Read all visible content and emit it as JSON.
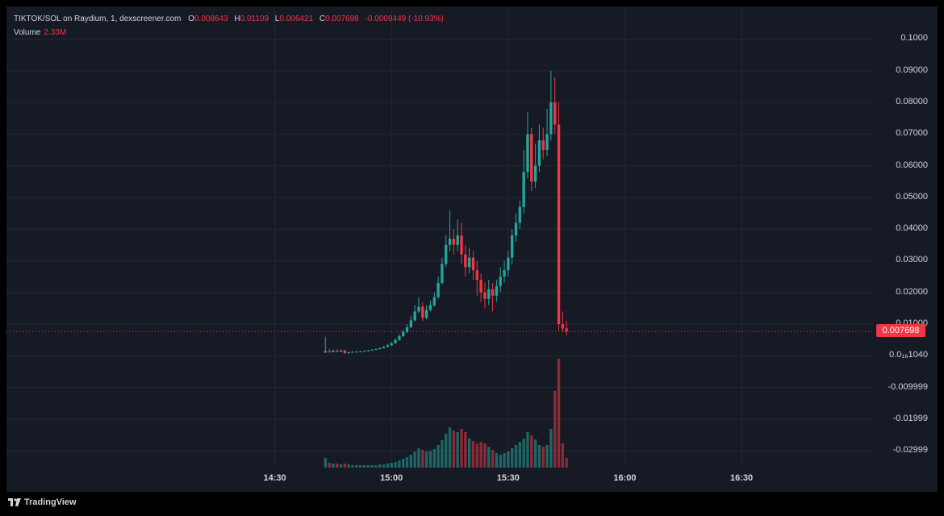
{
  "legend": {
    "symbol": "TIKTOK/SOL on Raydium, 1, dexscreener.com",
    "o_label": "O",
    "o_value": "0.008643",
    "h_label": "H",
    "h_value": "0.01109",
    "l_label": "L",
    "l_value": "0.006421",
    "c_label": "C",
    "c_value": "0.007698",
    "change": "-0.0009449 (-10.93%)",
    "volume_label": "Volume",
    "volume_value": "2.33M"
  },
  "current_price_label": "0.007698",
  "branding": "TradingView",
  "colors": {
    "up": "#26a69a",
    "down": "#f23645",
    "background": "#161a25",
    "grid": "#232733",
    "text": "#d1d4dc"
  },
  "chart_data": {
    "type": "candlestick",
    "y_ticks": [
      "0.1000",
      "0.09000",
      "0.08000",
      "0.07000",
      "0.06000",
      "0.05000",
      "0.04000",
      "0.03000",
      "0.02000",
      "0.01000",
      "0.0₁₆1040",
      "-0.009999",
      "-0.01999",
      "-0.02999"
    ],
    "y_tick_values": [
      0.1,
      0.09,
      0.08,
      0.07,
      0.06,
      0.05,
      0.04,
      0.03,
      0.02,
      0.01,
      0.0,
      -0.01,
      -0.02,
      -0.03
    ],
    "x_ticks": [
      "14:30",
      "15:00",
      "15:30",
      "16:00",
      "16:30"
    ],
    "x_tick_minutes": [
      870,
      900,
      930,
      960,
      990
    ],
    "x_range_minutes": [
      801,
      1024
    ],
    "y_range": [
      -0.0353,
      0.1103
    ],
    "current_price": 0.007698,
    "candles": [
      [
        883,
        0.001,
        0.0015,
        0.006,
        0.0009,
        1.2
      ],
      [
        884,
        0.0015,
        0.0012,
        0.0022,
        0.001,
        0.6
      ],
      [
        885,
        0.0012,
        0.0016,
        0.002,
        0.0011,
        0.5
      ],
      [
        886,
        0.0016,
        0.0013,
        0.0021,
        0.0011,
        0.5
      ],
      [
        887,
        0.0013,
        0.0017,
        0.002,
        0.0012,
        0.4
      ],
      [
        888,
        0.0017,
        0.0008,
        0.0019,
        0.0007,
        0.5
      ],
      [
        889,
        0.0008,
        0.0011,
        0.0014,
        0.0007,
        0.4
      ],
      [
        890,
        0.0011,
        0.0012,
        0.0015,
        0.001,
        0.3
      ],
      [
        891,
        0.0012,
        0.0013,
        0.0015,
        0.0011,
        0.3
      ],
      [
        892,
        0.0013,
        0.0014,
        0.0016,
        0.0012,
        0.3
      ],
      [
        893,
        0.0014,
        0.0015,
        0.0017,
        0.0013,
        0.3
      ],
      [
        894,
        0.0015,
        0.0017,
        0.0019,
        0.0014,
        0.3
      ],
      [
        895,
        0.0017,
        0.0019,
        0.0021,
        0.0016,
        0.3
      ],
      [
        896,
        0.0019,
        0.0021,
        0.0023,
        0.0018,
        0.3
      ],
      [
        897,
        0.0021,
        0.0024,
        0.0027,
        0.002,
        0.4
      ],
      [
        898,
        0.0024,
        0.0028,
        0.0031,
        0.0023,
        0.4
      ],
      [
        899,
        0.0028,
        0.0033,
        0.0037,
        0.0027,
        0.5
      ],
      [
        900,
        0.0033,
        0.004,
        0.0044,
        0.0031,
        0.6
      ],
      [
        901,
        0.004,
        0.005,
        0.0055,
        0.0038,
        0.7
      ],
      [
        902,
        0.005,
        0.0062,
        0.0068,
        0.0048,
        0.9
      ],
      [
        903,
        0.0062,
        0.0075,
        0.0083,
        0.006,
        1.1
      ],
      [
        904,
        0.0075,
        0.009,
        0.01,
        0.0072,
        1.3
      ],
      [
        905,
        0.009,
        0.0112,
        0.0125,
        0.0088,
        1.6
      ],
      [
        906,
        0.0112,
        0.014,
        0.016,
        0.0108,
        2.0
      ],
      [
        907,
        0.014,
        0.0155,
        0.0185,
        0.0135,
        2.4
      ],
      [
        908,
        0.0155,
        0.012,
        0.017,
        0.011,
        2.2
      ],
      [
        909,
        0.012,
        0.0145,
        0.016,
        0.0115,
        2.0
      ],
      [
        910,
        0.0145,
        0.016,
        0.0175,
        0.014,
        2.1
      ],
      [
        911,
        0.016,
        0.0185,
        0.02,
        0.0155,
        2.3
      ],
      [
        912,
        0.0185,
        0.023,
        0.025,
        0.018,
        2.8
      ],
      [
        913,
        0.023,
        0.029,
        0.031,
        0.0225,
        3.4
      ],
      [
        914,
        0.029,
        0.035,
        0.038,
        0.028,
        4.2
      ],
      [
        915,
        0.035,
        0.037,
        0.046,
        0.033,
        5.0
      ],
      [
        916,
        0.037,
        0.035,
        0.04,
        0.032,
        4.6
      ],
      [
        917,
        0.035,
        0.038,
        0.043,
        0.033,
        4.4
      ],
      [
        918,
        0.038,
        0.032,
        0.042,
        0.029,
        4.8
      ],
      [
        919,
        0.032,
        0.028,
        0.035,
        0.025,
        4.4
      ],
      [
        920,
        0.028,
        0.031,
        0.034,
        0.026,
        3.6
      ],
      [
        921,
        0.031,
        0.027,
        0.033,
        0.024,
        3.3
      ],
      [
        922,
        0.027,
        0.024,
        0.03,
        0.019,
        3.0
      ],
      [
        923,
        0.024,
        0.02,
        0.026,
        0.017,
        3.2
      ],
      [
        924,
        0.02,
        0.018,
        0.023,
        0.015,
        3.0
      ],
      [
        925,
        0.018,
        0.021,
        0.024,
        0.016,
        2.6
      ],
      [
        926,
        0.021,
        0.019,
        0.023,
        0.014,
        2.2
      ],
      [
        927,
        0.019,
        0.022,
        0.024,
        0.017,
        1.8
      ],
      [
        928,
        0.022,
        0.025,
        0.028,
        0.02,
        1.6
      ],
      [
        929,
        0.025,
        0.027,
        0.03,
        0.023,
        1.8
      ],
      [
        930,
        0.027,
        0.031,
        0.033,
        0.025,
        2.0
      ],
      [
        931,
        0.031,
        0.038,
        0.04,
        0.029,
        2.4
      ],
      [
        932,
        0.038,
        0.042,
        0.045,
        0.036,
        2.8
      ],
      [
        933,
        0.042,
        0.047,
        0.049,
        0.04,
        3.2
      ],
      [
        934,
        0.047,
        0.058,
        0.065,
        0.045,
        3.6
      ],
      [
        935,
        0.058,
        0.07,
        0.077,
        0.056,
        4.4
      ],
      [
        936,
        0.07,
        0.055,
        0.072,
        0.052,
        4.0
      ],
      [
        937,
        0.055,
        0.06,
        0.067,
        0.053,
        3.5
      ],
      [
        938,
        0.06,
        0.068,
        0.073,
        0.058,
        2.8
      ],
      [
        939,
        0.068,
        0.065,
        0.072,
        0.062,
        2.6
      ],
      [
        940,
        0.065,
        0.07,
        0.078,
        0.063,
        2.8
      ],
      [
        941,
        0.07,
        0.08,
        0.09,
        0.068,
        4.8
      ],
      [
        942,
        0.08,
        0.073,
        0.088,
        0.07,
        9.5
      ],
      [
        943,
        0.073,
        0.01,
        0.08,
        0.008,
        13.5
      ],
      [
        944,
        0.01,
        0.0086,
        0.014,
        0.0075,
        3.0
      ],
      [
        945,
        0.008643,
        0.007698,
        0.01109,
        0.006421,
        1.2
      ]
    ]
  }
}
